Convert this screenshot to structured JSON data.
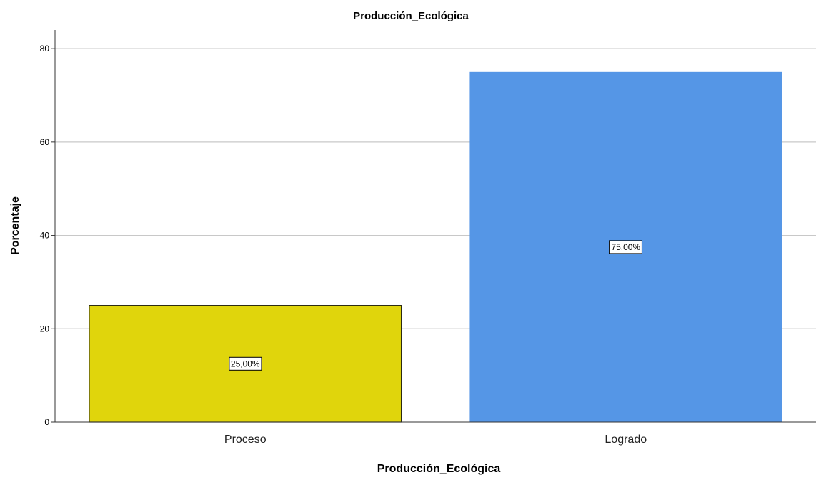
{
  "chart_data": {
    "type": "bar",
    "title": "Producción_Ecológica",
    "xlabel": "Producción_Ecológica",
    "ylabel": "Porcentaje",
    "categories": [
      "Proceso",
      "Logrado"
    ],
    "values": [
      25,
      75
    ],
    "data_labels": [
      "25,00%",
      "75,00%"
    ],
    "colors": [
      "#e0d50c",
      "#5596e6"
    ],
    "ylim": [
      0,
      84
    ],
    "yticks": [
      0,
      20,
      40,
      60,
      80
    ],
    "grid": true,
    "legend": "none"
  }
}
